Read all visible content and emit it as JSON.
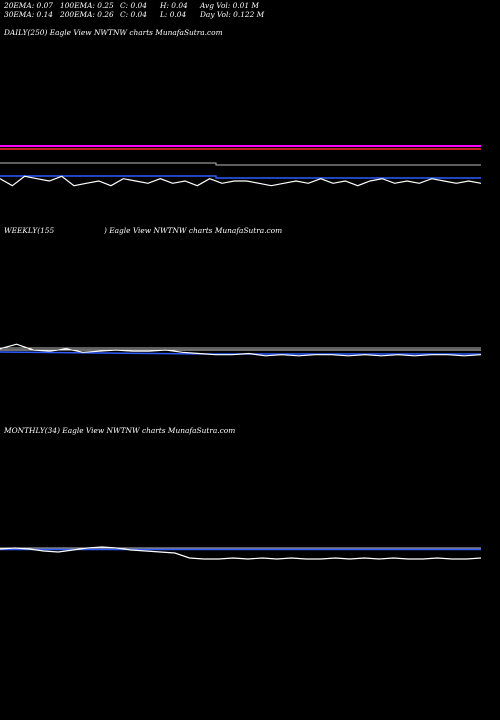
{
  "header": {
    "row1": [
      "20EMA: 0.07",
      "100EMA: 0.25",
      "C: 0.04",
      "H: 0.04",
      "Avg Vol: 0.01  M"
    ],
    "row2": [
      "30EMA: 0.14",
      "200EMA: 0.26",
      "C: 0.04",
      "L: 0.04",
      "Day Vol: 0.122  M"
    ]
  },
  "chart_data": [
    {
      "type": "line",
      "panel_label": "DAILY(250) Eagle   View  NWTNW charts MunafaSutra.com",
      "colors": {
        "price": "#ffffff",
        "ema_blue": "#2f5bff",
        "ema_red": "#ff2a2a",
        "ema_magenta": "#ff00ff",
        "ema_grey": "#bbbbbb"
      },
      "y_level": {
        "magenta": 0.3,
        "red": 0.28,
        "grey": 0.26,
        "blue": 0.14,
        "price_mean": 0.12
      },
      "series": [
        {
          "color": "#ffffff",
          "values": [
            0.13,
            0.1,
            0.14,
            0.13,
            0.12,
            0.14,
            0.1,
            0.11,
            0.12,
            0.1,
            0.13,
            0.12,
            0.11,
            0.13,
            0.11,
            0.12,
            0.1,
            0.13,
            0.11,
            0.12,
            0.12,
            0.11,
            0.1,
            0.11,
            0.12,
            0.11,
            0.13,
            0.11,
            0.12,
            0.1,
            0.12,
            0.13,
            0.11,
            0.12,
            0.11,
            0.13,
            0.12,
            0.11,
            0.12,
            0.11
          ]
        }
      ]
    },
    {
      "type": "line",
      "panel_label_left": "WEEKLY(155",
      "panel_label_right": ") Eagle   View  NWTNW charts MunafaSutra.com",
      "series": [
        {
          "color": "#ffffff",
          "values": [
            0.14,
            0.18,
            0.13,
            0.12,
            0.14,
            0.11,
            0.12,
            0.13,
            0.12,
            0.12,
            0.13,
            0.11,
            0.1,
            0.09,
            0.09,
            0.1,
            0.08,
            0.09,
            0.08,
            0.09,
            0.09,
            0.08,
            0.09,
            0.08,
            0.09,
            0.08,
            0.09,
            0.09,
            0.08,
            0.09
          ]
        }
      ]
    },
    {
      "type": "line",
      "panel_label": "MONTHLY(34) Eagle   View  NWTNW charts MunafaSutra.com",
      "series": [
        {
          "color": "#ffffff",
          "values": [
            0.15,
            0.16,
            0.15,
            0.13,
            0.12,
            0.14,
            0.16,
            0.17,
            0.16,
            0.14,
            0.13,
            0.12,
            0.11,
            0.06,
            0.05,
            0.05,
            0.06,
            0.05,
            0.06,
            0.05,
            0.06,
            0.05,
            0.05,
            0.06,
            0.05,
            0.06,
            0.05,
            0.06,
            0.05,
            0.05,
            0.06,
            0.05,
            0.05,
            0.06
          ]
        }
      ]
    }
  ]
}
